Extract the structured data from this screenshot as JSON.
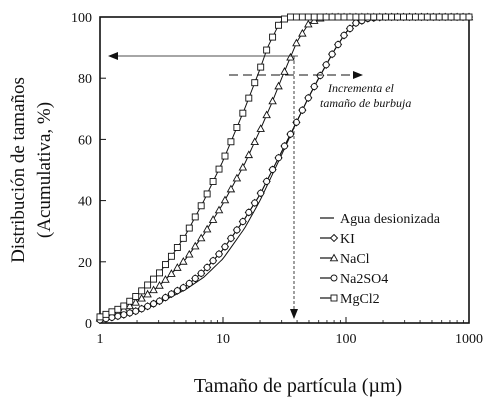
{
  "chart_data": {
    "type": "line",
    "xscale": "log",
    "xlim": [
      1,
      1000
    ],
    "ylim": [
      0,
      100
    ],
    "x_ticks": [
      "1",
      "10",
      "100",
      "1000"
    ],
    "y_ticks": [
      "0",
      "20",
      "40",
      "60",
      "80",
      "100"
    ],
    "xlabel": "Tamaño de partícula (µm)",
    "ylabel_line1": "Distribución de tamaños",
    "ylabel_line2": "(Acumulativa, %)",
    "annotation_line1": "Incrementa el",
    "annotation_line2": "tamaño de burbuja",
    "grid": false,
    "legend_position": "lower-right",
    "series": [
      {
        "name": "Agua desionizada",
        "marker": "none",
        "x": [
          1,
          1.5,
          2,
          3,
          4,
          5,
          7,
          10,
          15,
          20,
          30,
          40,
          50,
          60,
          80,
          100,
          120,
          150,
          200,
          1000
        ],
        "y": [
          0.5,
          2,
          3.5,
          6.5,
          9,
          11,
          15,
          21,
          31,
          40,
          55,
          66,
          74,
          80,
          89,
          95,
          98,
          99.5,
          100,
          100
        ]
      },
      {
        "name": "KI",
        "marker": "diamond",
        "x": [
          1,
          1.5,
          2,
          3,
          4,
          5,
          7,
          10,
          15,
          20,
          30,
          40,
          50,
          60,
          80,
          100,
          120,
          150,
          200,
          1000
        ],
        "y": [
          1,
          2.5,
          4,
          7,
          10,
          12,
          17,
          24,
          34,
          42,
          56,
          66,
          74,
          80,
          89,
          95,
          98,
          99.5,
          100,
          100
        ]
      },
      {
        "name": "NaCl",
        "marker": "triangle",
        "x": [
          1,
          1.5,
          2,
          3,
          4,
          5,
          7,
          10,
          15,
          20,
          25,
          30,
          40,
          50,
          60,
          70,
          1000
        ],
        "y": [
          1.5,
          4,
          7,
          12,
          17,
          21,
          29,
          39,
          52,
          63,
          72,
          80,
          92,
          98,
          99.5,
          100,
          100
        ]
      },
      {
        "name": "Na2SO4",
        "marker": "circle",
        "x": [
          1,
          1.5,
          2,
          3,
          4,
          5,
          7,
          10,
          15,
          20,
          30,
          40,
          50,
          60,
          80,
          100,
          120,
          150,
          200,
          1000
        ],
        "y": [
          1,
          2.5,
          4,
          7,
          10,
          12,
          17,
          24,
          34,
          42,
          56,
          66,
          74,
          80,
          89,
          95,
          98,
          99.5,
          100,
          100
        ]
      },
      {
        "name": "MgCl2",
        "marker": "square",
        "x": [
          1,
          1.5,
          2,
          3,
          4,
          5,
          7,
          10,
          15,
          20,
          23,
          25,
          28,
          30,
          35,
          1000
        ],
        "y": [
          2,
          5,
          9,
          16,
          23,
          29,
          40,
          53,
          70,
          83,
          90,
          93,
          97,
          99,
          100,
          100
        ]
      }
    ]
  }
}
